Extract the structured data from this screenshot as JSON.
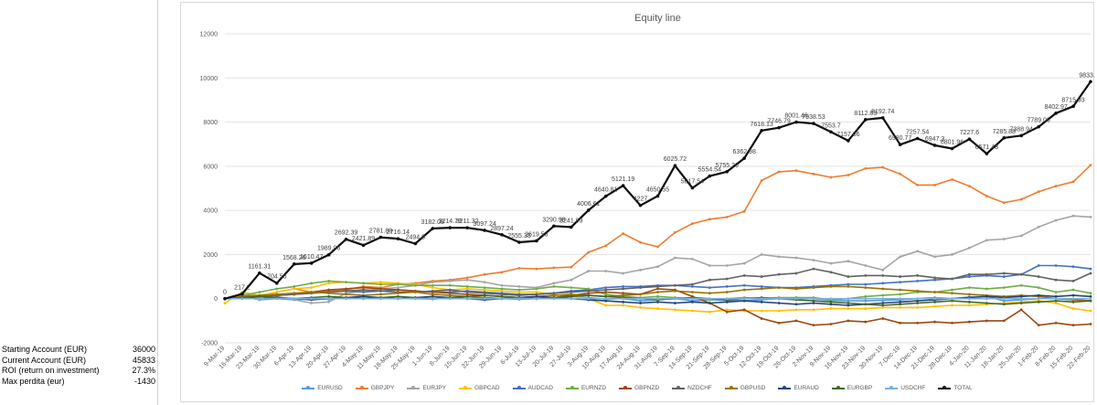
{
  "stats": [
    {
      "label": "Starting Account (EUR)",
      "value": "36000"
    },
    {
      "label": "Current Account (EUR)",
      "value": "45833"
    },
    {
      "label": "ROI (return on investment)",
      "value": "27.3%"
    },
    {
      "label": "Max perdita (eur)",
      "value": "-1430"
    }
  ],
  "chart_data": {
    "type": "line",
    "title": "Equity line",
    "ylim": [
      -2000,
      12000
    ],
    "yticks": [
      -2000,
      0,
      2000,
      4000,
      6000,
      8000,
      10000,
      12000
    ],
    "grid": true,
    "legend_position": "bottom",
    "x": [
      "9-Mar-19",
      "16-Mar-19",
      "23-Mar-19",
      "30-Mar-19",
      "6-Apr-19",
      "13-Apr-19",
      "20-Apr-19",
      "27-Apr-19",
      "4-May-19",
      "11-May-19",
      "18-May-19",
      "25-May-19",
      "1-Jun-19",
      "8-Jun-19",
      "15-Jun-19",
      "22-Jun-19",
      "29-Jun-19",
      "6-Jul-19",
      "13-Jul-19",
      "20-Jul-19",
      "27-Jul-19",
      "3-Aug-19",
      "10-Aug-19",
      "17-Aug-19",
      "24-Aug-19",
      "31-Aug-19",
      "7-Sep-19",
      "14-Sep-19",
      "21-Sep-19",
      "28-Sep-19",
      "5-Oct-19",
      "12-Oct-19",
      "19-Oct-19",
      "26-Oct-19",
      "2-Nov-19",
      "9-Nov-19",
      "16-Nov-19",
      "23-Nov-19",
      "30-Nov-19",
      "7-Dec-19",
      "14-Dec-19",
      "21-Dec-19",
      "28-Dec-19",
      "4-Jan-20",
      "11-Jan-20",
      "18-Jan-20",
      "25-Jan-20",
      "1-Feb-20",
      "8-Feb-20",
      "15-Feb-20",
      "22-Feb-20"
    ],
    "series": [
      {
        "name": "EURUSD",
        "color": "#5b9bd5",
        "values": [
          0,
          100,
          -50,
          0,
          -50,
          0,
          -30,
          50,
          0,
          50,
          0,
          0,
          -20,
          30,
          0,
          50,
          0,
          -30,
          0,
          50,
          100,
          50,
          -20,
          0,
          -100,
          -50,
          0,
          -100,
          -50,
          -80,
          -100,
          -50,
          0,
          50,
          0,
          -80,
          -100,
          -100,
          -80,
          -50,
          0,
          50,
          0,
          80,
          100,
          -100,
          -50,
          0,
          0,
          -50,
          -100
        ]
      },
      {
        "name": "GBPJPY",
        "color": "#ed7d31",
        "values": [
          0,
          200,
          100,
          300,
          450,
          300,
          350,
          400,
          550,
          500,
          650,
          700,
          800,
          850,
          950,
          1100,
          1200,
          1380,
          1350,
          1400,
          1430,
          2100,
          2400,
          2950,
          2550,
          2350,
          3000,
          3400,
          3600,
          3700,
          3950,
          5350,
          5750,
          5800,
          5650,
          5500,
          5600,
          5900,
          5950,
          5650,
          5150,
          5150,
          5400,
          5100,
          4650,
          4350,
          4500,
          4850,
          5100,
          5300,
          6050
        ]
      },
      {
        "name": "EURJPY",
        "color": "#a5a5a5",
        "values": [
          0,
          100,
          -50,
          100,
          -50,
          -200,
          -150,
          250,
          350,
          450,
          500,
          600,
          750,
          800,
          850,
          750,
          600,
          550,
          500,
          700,
          850,
          1250,
          1250,
          1150,
          1300,
          1450,
          1850,
          1800,
          1500,
          1500,
          1600,
          2000,
          1900,
          1850,
          1750,
          1600,
          1700,
          1500,
          1300,
          1900,
          2150,
          1900,
          2000,
          2300,
          2650,
          2700,
          2850,
          3250,
          3550,
          3750,
          3700
        ]
      },
      {
        "name": "GBPCAD",
        "color": "#ffc000",
        "values": [
          -200,
          300,
          150,
          300,
          450,
          500,
          700,
          750,
          700,
          750,
          700,
          650,
          500,
          400,
          450,
          400,
          350,
          300,
          300,
          200,
          100,
          0,
          -300,
          -300,
          -400,
          -450,
          -500,
          -550,
          -600,
          -500,
          -550,
          -550,
          -550,
          -500,
          -500,
          -450,
          -450,
          -450,
          -400,
          -400,
          -400,
          -350,
          -300,
          -300,
          -250,
          -200,
          -150,
          -100,
          -200,
          -450,
          -550
        ]
      },
      {
        "name": "AUDCAD",
        "color": "#4472c4",
        "values": [
          0,
          50,
          100,
          150,
          200,
          250,
          300,
          350,
          300,
          350,
          400,
          350,
          300,
          300,
          350,
          300,
          250,
          200,
          200,
          250,
          350,
          400,
          500,
          550,
          550,
          600,
          600,
          550,
          500,
          550,
          600,
          550,
          500,
          500,
          550,
          600,
          650,
          650,
          700,
          750,
          800,
          850,
          900,
          1000,
          1050,
          1000,
          1100,
          1500,
          1500,
          1450,
          1350
        ]
      },
      {
        "name": "EURNZD",
        "color": "#70ad47",
        "values": [
          0,
          150,
          300,
          450,
          550,
          700,
          800,
          750,
          700,
          650,
          650,
          600,
          600,
          600,
          550,
          500,
          450,
          400,
          450,
          550,
          500,
          450,
          200,
          100,
          50,
          100,
          50,
          0,
          -50,
          0,
          50,
          0,
          50,
          50,
          50,
          -50,
          0,
          100,
          150,
          200,
          300,
          300,
          400,
          500,
          450,
          500,
          600,
          500,
          300,
          400,
          250
        ]
      },
      {
        "name": "GBPNZD",
        "color": "#9e480e",
        "values": [
          0,
          50,
          100,
          150,
          200,
          300,
          400,
          450,
          500,
          450,
          400,
          350,
          300,
          250,
          200,
          150,
          100,
          50,
          0,
          50,
          150,
          250,
          300,
          250,
          200,
          450,
          400,
          100,
          -200,
          -600,
          -500,
          -900,
          -1100,
          -1000,
          -1200,
          -1150,
          -1000,
          -1050,
          -900,
          -1100,
          -1100,
          -1050,
          -1100,
          -1050,
          -1000,
          -1000,
          -500,
          -1200,
          -1100,
          -1200,
          -1150
        ]
      },
      {
        "name": "NZDCHF",
        "color": "#636363",
        "values": [
          0,
          50,
          100,
          150,
          200,
          250,
          300,
          350,
          400,
          350,
          300,
          300,
          350,
          400,
          300,
          250,
          200,
          150,
          200,
          250,
          300,
          350,
          400,
          450,
          500,
          550,
          600,
          650,
          850,
          900,
          1050,
          1000,
          1100,
          1150,
          1350,
          1200,
          1000,
          1050,
          1050,
          1000,
          1050,
          950,
          900,
          1100,
          1100,
          1150,
          1100,
          1000,
          850,
          800,
          1150
        ]
      },
      {
        "name": "GBPUSD",
        "color": "#997300",
        "values": [
          0,
          100,
          150,
          200,
          250,
          300,
          250,
          200,
          150,
          200,
          250,
          300,
          200,
          150,
          100,
          50,
          0,
          50,
          100,
          150,
          200,
          150,
          100,
          150,
          200,
          300,
          350,
          300,
          250,
          300,
          400,
          450,
          500,
          450,
          500,
          550,
          550,
          500,
          450,
          400,
          350,
          300,
          250,
          200,
          150,
          100,
          150,
          100,
          0,
          -50,
          -100
        ]
      },
      {
        "name": "EURAUD",
        "color": "#264478",
        "values": [
          0,
          50,
          0,
          50,
          0,
          -50,
          0,
          50,
          100,
          50,
          0,
          50,
          100,
          50,
          0,
          -50,
          0,
          50,
          100,
          50,
          0,
          -50,
          -100,
          -150,
          -200,
          -150,
          -200,
          -150,
          -200,
          -150,
          -100,
          -150,
          -200,
          -250,
          -200,
          -250,
          -300,
          -250,
          -200,
          -150,
          -100,
          -50,
          0,
          50,
          100,
          50,
          100,
          150,
          100,
          150,
          100
        ]
      },
      {
        "name": "EURGBP",
        "color": "#43682b",
        "values": [
          0,
          50,
          100,
          50,
          0,
          50,
          100,
          50,
          0,
          50,
          100,
          50,
          0,
          50,
          100,
          150,
          100,
          50,
          0,
          50,
          100,
          150,
          100,
          50,
          0,
          -50,
          0,
          50,
          0,
          -50,
          0,
          50,
          0,
          -50,
          -100,
          -150,
          -200,
          -250,
          -300,
          -250,
          -200,
          -150,
          -100,
          -150,
          -200,
          -250,
          -200,
          -150,
          -100,
          -150,
          -100
        ]
      },
      {
        "name": "USDCHF",
        "color": "#7cafdd",
        "values": [
          0,
          0,
          0,
          0,
          0,
          0,
          0,
          0,
          0,
          0,
          0,
          0,
          0,
          0,
          0,
          0,
          0,
          0,
          0,
          0,
          0,
          0,
          0,
          0,
          0,
          0,
          0,
          0,
          0,
          0,
          0,
          0,
          0,
          0,
          0,
          0,
          0,
          0,
          0,
          0,
          0,
          0,
          0,
          0,
          0,
          0,
          0,
          0,
          0,
          0,
          0
        ]
      },
      {
        "name": "TOTAL",
        "color": "#0d0d0d",
        "values": [
          0,
          217.2,
          1161.31,
          704.55,
          1568.26,
          1610.47,
          1989.06,
          2692.39,
          2421.89,
          2781.89,
          2716.14,
          2494.8,
          3182.08,
          3214.79,
          3211.32,
          3097.24,
          2897.24,
          2555.38,
          2619.53,
          3290.98,
          3241.99,
          4006.61,
          4640.81,
          5121.19,
          4227,
          4650.55,
          6025.72,
          5017.54,
          5554.54,
          5755.26,
          6362.98,
          7618.13,
          7746.79,
          8001.46,
          7938.53,
          7553.7,
          7157.66,
          8112.83,
          8192.74,
          6980.77,
          7257.54,
          6947.3,
          6801.96,
          7227.6,
          6571.48,
          7285.88,
          7388.94,
          7789.06,
          8402.97,
          8715.93,
          9833.35
        ]
      }
    ]
  }
}
